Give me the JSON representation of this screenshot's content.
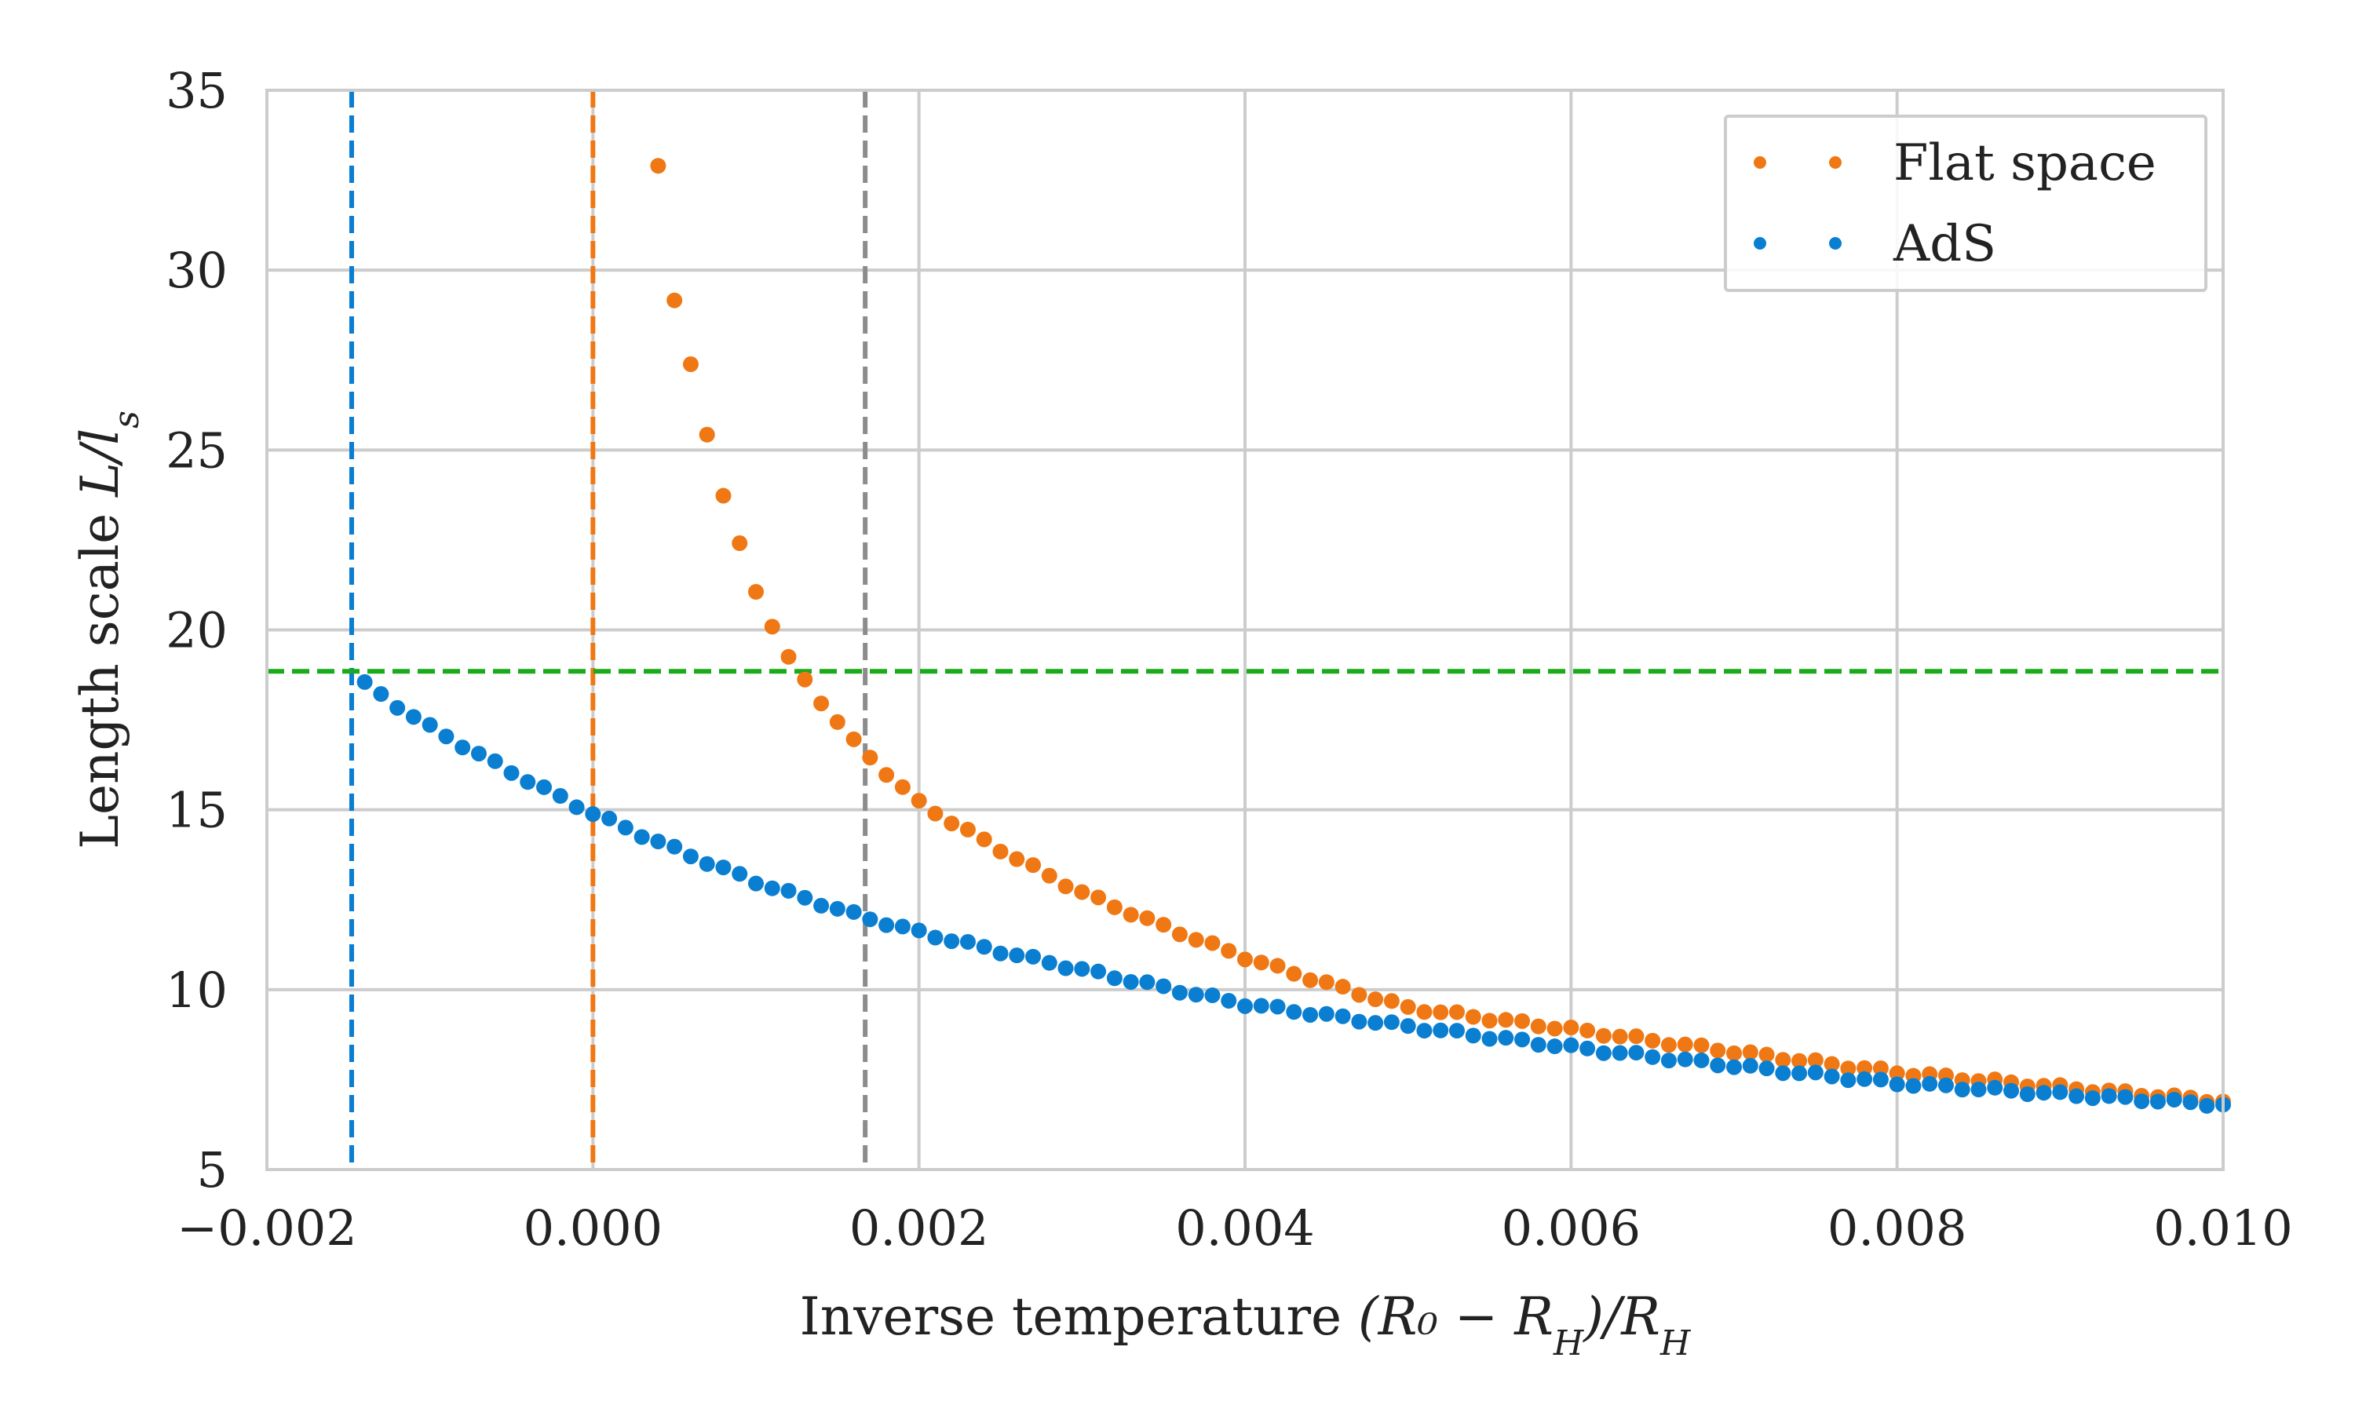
{
  "chart_data": {
    "type": "scatter",
    "title": "",
    "xlabel": "Inverse temperature (R₀ − R_H)/R_H",
    "xlabel_parts": {
      "prefix": "Inverse temperature ",
      "math": "(R₀ − R",
      "sub1": "H",
      "mid": ")/R",
      "sub2": "H"
    },
    "ylabel": "Length scale L/l_s",
    "ylabel_parts": {
      "prefix": "Length scale ",
      "math": "L/l",
      "sub": "s"
    },
    "xlim": [
      -0.002,
      0.01
    ],
    "ylim": [
      5,
      35
    ],
    "xticks": [
      -0.002,
      0.0,
      0.002,
      0.004,
      0.006,
      0.008,
      0.01
    ],
    "xtick_labels": [
      "−0.002",
      "0.000",
      "0.002",
      "0.004",
      "0.006",
      "0.008",
      "0.010"
    ],
    "yticks": [
      5,
      10,
      15,
      20,
      25,
      30,
      35
    ],
    "ytick_labels": [
      "5",
      "10",
      "15",
      "20",
      "25",
      "30",
      "35"
    ],
    "grid": true,
    "legend_position": "top-right",
    "series": [
      {
        "name": "Flat space",
        "color": "#f07814",
        "x_start": 0.0004,
        "x_end": 0.01,
        "x_step": 0.0001,
        "model": "flat",
        "anchor_points": [
          [
            0.0004,
            32.9
          ],
          [
            0.0005,
            29.1
          ],
          [
            0.0006,
            27.4
          ],
          [
            0.0008,
            23.7
          ],
          [
            0.001,
            21.1
          ],
          [
            0.0012,
            19.2
          ],
          [
            0.0016,
            16.9
          ],
          [
            0.002,
            15.2
          ],
          [
            0.003,
            12.7
          ],
          [
            0.004,
            10.9
          ],
          [
            0.005,
            9.5
          ],
          [
            0.006,
            8.9
          ],
          [
            0.008,
            7.7
          ],
          [
            0.01,
            6.9
          ]
        ]
      },
      {
        "name": "AdS",
        "color": "#0a7fd1",
        "x_start": -0.0014,
        "x_end": 0.01,
        "x_step": 0.0001,
        "model": "ads",
        "anchor_points": [
          [
            -0.0014,
            18.5
          ],
          [
            -0.001,
            17.3
          ],
          [
            0.0,
            14.9
          ],
          [
            0.001,
            13.0
          ],
          [
            0.0016,
            12.1
          ],
          [
            0.002,
            11.6
          ],
          [
            0.004,
            9.6
          ],
          [
            0.006,
            8.4
          ],
          [
            0.008,
            7.4
          ],
          [
            0.01,
            6.8
          ]
        ]
      }
    ],
    "reference_lines": [
      {
        "orientation": "vertical",
        "value": -0.00148,
        "color": "#0a7fd1",
        "style": "dashed"
      },
      {
        "orientation": "vertical",
        "value": 0.0,
        "color": "#f07814",
        "style": "dashed"
      },
      {
        "orientation": "vertical",
        "value": 0.00167,
        "color": "#8c8c8c",
        "style": "dashed"
      },
      {
        "orientation": "horizontal",
        "value": 18.85,
        "color": "#1aaa1a",
        "style": "dashed"
      }
    ]
  }
}
